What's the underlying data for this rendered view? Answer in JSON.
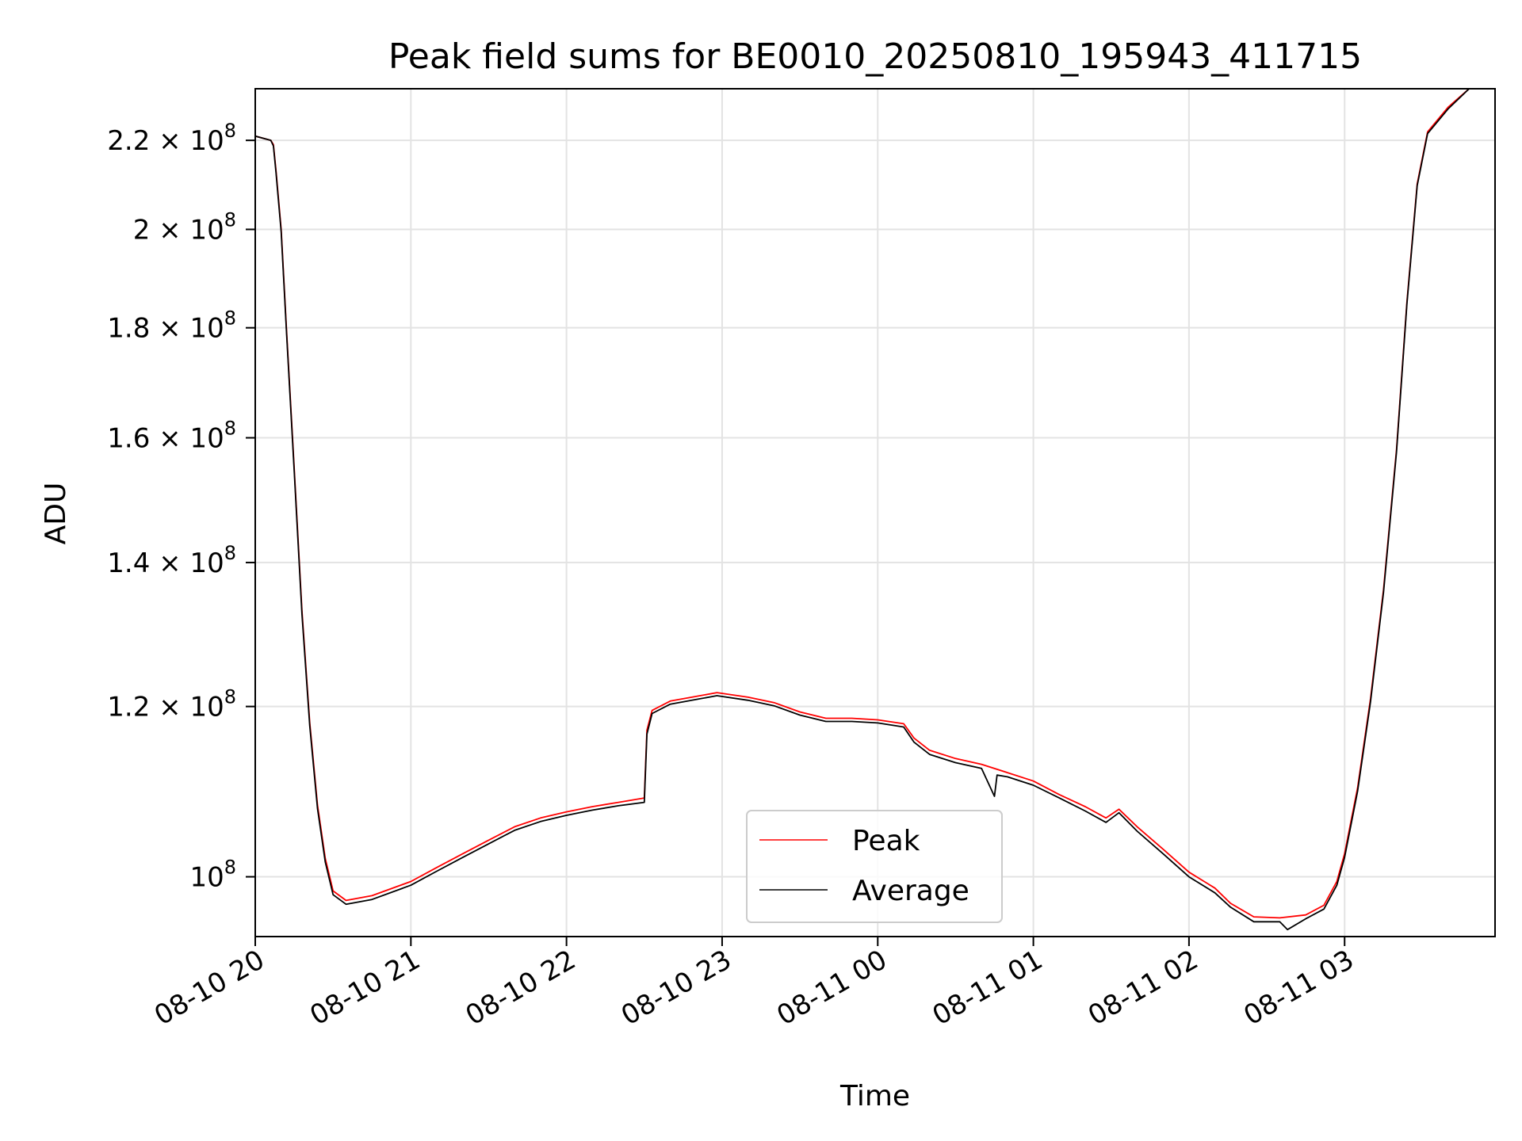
{
  "chart_data": {
    "type": "line",
    "title": "Peak field sums for BE0010_20250810_195943_411715",
    "xlabel": "Time",
    "ylabel": "ADU",
    "y_scale": "log",
    "grid": true,
    "legend_position": "lower center",
    "x_range": [
      "2025-08-10 20:00",
      "2025-08-11 03:58"
    ],
    "ylim": [
      93800000,
      232500000
    ],
    "x_ticks": [
      {
        "t": "2025-08-10 20:00",
        "label": "08-10 20"
      },
      {
        "t": "2025-08-10 21:00",
        "label": "08-10 21"
      },
      {
        "t": "2025-08-10 22:00",
        "label": "08-10 22"
      },
      {
        "t": "2025-08-10 23:00",
        "label": "08-10 23"
      },
      {
        "t": "2025-08-11 00:00",
        "label": "08-11 00"
      },
      {
        "t": "2025-08-11 01:00",
        "label": "08-11 01"
      },
      {
        "t": "2025-08-11 02:00",
        "label": "08-11 02"
      },
      {
        "t": "2025-08-11 03:00",
        "label": "08-11 03"
      }
    ],
    "y_ticks": [
      {
        "value": 100000000,
        "mant": "10",
        "exp": "8"
      },
      {
        "value": 120000000,
        "mant": "1.2 × 10",
        "exp": "8"
      },
      {
        "value": 140000000,
        "mant": "1.4 × 10",
        "exp": "8"
      },
      {
        "value": 160000000,
        "mant": "1.6 × 10",
        "exp": "8"
      },
      {
        "value": 180000000,
        "mant": "1.8 × 10",
        "exp": "8"
      },
      {
        "value": 200000000,
        "mant": "2 × 10",
        "exp": "8"
      },
      {
        "value": 220000000,
        "mant": "2.2 × 10",
        "exp": "8"
      }
    ],
    "series": [
      {
        "name": "Peak",
        "color": "#ff0000",
        "points": [
          [
            "2025-08-10 20:00",
            221000000
          ],
          [
            "2025-08-10 20:06",
            220000000
          ],
          [
            "2025-08-10 20:07",
            219000000
          ],
          [
            "2025-08-10 20:08",
            213000000
          ],
          [
            "2025-08-10 20:10",
            200000000
          ],
          [
            "2025-08-10 20:12",
            180000000
          ],
          [
            "2025-08-10 20:15",
            155000000
          ],
          [
            "2025-08-10 20:18",
            133000000
          ],
          [
            "2025-08-10 20:21",
            118000000
          ],
          [
            "2025-08-10 20:24",
            108000000
          ],
          [
            "2025-08-10 20:27",
            102000000
          ],
          [
            "2025-08-10 20:30",
            98500000
          ],
          [
            "2025-08-10 20:35",
            97500000
          ],
          [
            "2025-08-10 20:45",
            98000000
          ],
          [
            "2025-08-10 21:00",
            99500000
          ],
          [
            "2025-08-10 21:10",
            101000000
          ],
          [
            "2025-08-10 21:20",
            102500000
          ],
          [
            "2025-08-10 21:30",
            104000000
          ],
          [
            "2025-08-10 21:40",
            105500000
          ],
          [
            "2025-08-10 21:50",
            106500000
          ],
          [
            "2025-08-10 22:00",
            107200000
          ],
          [
            "2025-08-10 22:10",
            107800000
          ],
          [
            "2025-08-10 22:20",
            108300000
          ],
          [
            "2025-08-10 22:30",
            108800000
          ],
          [
            "2025-08-10 22:31",
            117000000
          ],
          [
            "2025-08-10 22:33",
            119500000
          ],
          [
            "2025-08-10 22:40",
            120700000
          ],
          [
            "2025-08-10 22:50",
            121300000
          ],
          [
            "2025-08-10 22:58",
            121800000
          ],
          [
            "2025-08-10 23:10",
            121200000
          ],
          [
            "2025-08-10 23:20",
            120500000
          ],
          [
            "2025-08-10 23:30",
            119300000
          ],
          [
            "2025-08-10 23:40",
            118500000
          ],
          [
            "2025-08-10 23:50",
            118500000
          ],
          [
            "2025-08-11 00:00",
            118300000
          ],
          [
            "2025-08-11 00:10",
            117800000
          ],
          [
            "2025-08-11 00:14",
            116000000
          ],
          [
            "2025-08-11 00:20",
            114500000
          ],
          [
            "2025-08-11 00:30",
            113500000
          ],
          [
            "2025-08-11 00:40",
            112800000
          ],
          [
            "2025-08-11 00:50",
            111800000
          ],
          [
            "2025-08-11 01:00",
            110800000
          ],
          [
            "2025-08-11 01:10",
            109200000
          ],
          [
            "2025-08-11 01:20",
            107800000
          ],
          [
            "2025-08-11 01:28",
            106500000
          ],
          [
            "2025-08-11 01:33",
            107500000
          ],
          [
            "2025-08-11 01:40",
            105500000
          ],
          [
            "2025-08-11 01:50",
            103000000
          ],
          [
            "2025-08-11 02:00",
            100500000
          ],
          [
            "2025-08-11 02:10",
            98800000
          ],
          [
            "2025-08-11 02:16",
            97200000
          ],
          [
            "2025-08-11 02:25",
            95800000
          ],
          [
            "2025-08-11 02:35",
            95700000
          ],
          [
            "2025-08-11 02:45",
            96000000
          ],
          [
            "2025-08-11 02:52",
            97000000
          ],
          [
            "2025-08-11 02:57",
            99500000
          ],
          [
            "2025-08-11 03:00",
            102500000
          ],
          [
            "2025-08-11 03:05",
            110000000
          ],
          [
            "2025-08-11 03:10",
            121000000
          ],
          [
            "2025-08-11 03:15",
            136000000
          ],
          [
            "2025-08-11 03:20",
            158000000
          ],
          [
            "2025-08-11 03:24",
            185000000
          ],
          [
            "2025-08-11 03:28",
            210000000
          ],
          [
            "2025-08-11 03:32",
            222000000
          ],
          [
            "2025-08-11 03:40",
            228000000
          ],
          [
            "2025-08-11 03:48",
            232500000
          ]
        ]
      },
      {
        "name": "Average",
        "color": "#000000",
        "points": [
          [
            "2025-08-10 20:00",
            221000000
          ],
          [
            "2025-08-10 20:06",
            220000000
          ],
          [
            "2025-08-10 20:07",
            218700000
          ],
          [
            "2025-08-10 20:08",
            212500000
          ],
          [
            "2025-08-10 20:10",
            199500000
          ],
          [
            "2025-08-10 20:12",
            179500000
          ],
          [
            "2025-08-10 20:15",
            154500000
          ],
          [
            "2025-08-10 20:18",
            132500000
          ],
          [
            "2025-08-10 20:21",
            117600000
          ],
          [
            "2025-08-10 20:24",
            107600000
          ],
          [
            "2025-08-10 20:27",
            101600000
          ],
          [
            "2025-08-10 20:30",
            98100000
          ],
          [
            "2025-08-10 20:35",
            97100000
          ],
          [
            "2025-08-10 20:45",
            97600000
          ],
          [
            "2025-08-10 21:00",
            99100000
          ],
          [
            "2025-08-10 21:10",
            100600000
          ],
          [
            "2025-08-10 21:20",
            102100000
          ],
          [
            "2025-08-10 21:30",
            103600000
          ],
          [
            "2025-08-10 21:40",
            105100000
          ],
          [
            "2025-08-10 21:50",
            106100000
          ],
          [
            "2025-08-10 22:00",
            106800000
          ],
          [
            "2025-08-10 22:10",
            107400000
          ],
          [
            "2025-08-10 22:20",
            107900000
          ],
          [
            "2025-08-10 22:30",
            108300000
          ],
          [
            "2025-08-10 22:31",
            116500000
          ],
          [
            "2025-08-10 22:33",
            119100000
          ],
          [
            "2025-08-10 22:40",
            120300000
          ],
          [
            "2025-08-10 22:50",
            120900000
          ],
          [
            "2025-08-10 22:58",
            121400000
          ],
          [
            "2025-08-10 23:10",
            120800000
          ],
          [
            "2025-08-10 23:20",
            120100000
          ],
          [
            "2025-08-10 23:30",
            118900000
          ],
          [
            "2025-08-10 23:40",
            118100000
          ],
          [
            "2025-08-10 23:50",
            118100000
          ],
          [
            "2025-08-11 00:00",
            117900000
          ],
          [
            "2025-08-11 00:10",
            117400000
          ],
          [
            "2025-08-11 00:14",
            115500000
          ],
          [
            "2025-08-11 00:20",
            114000000
          ],
          [
            "2025-08-11 00:30",
            113000000
          ],
          [
            "2025-08-11 00:40",
            112300000
          ],
          [
            "2025-08-11 00:45",
            109000000
          ],
          [
            "2025-08-11 00:46",
            111500000
          ],
          [
            "2025-08-11 00:50",
            111300000
          ],
          [
            "2025-08-11 01:00",
            110300000
          ],
          [
            "2025-08-11 01:10",
            108800000
          ],
          [
            "2025-08-11 01:20",
            107300000
          ],
          [
            "2025-08-11 01:28",
            106000000
          ],
          [
            "2025-08-11 01:33",
            107100000
          ],
          [
            "2025-08-11 01:40",
            105000000
          ],
          [
            "2025-08-11 01:50",
            102500000
          ],
          [
            "2025-08-11 02:00",
            100000000
          ],
          [
            "2025-08-11 02:10",
            98300000
          ],
          [
            "2025-08-11 02:16",
            96800000
          ],
          [
            "2025-08-11 02:25",
            95300000
          ],
          [
            "2025-08-11 02:35",
            95300000
          ],
          [
            "2025-08-11 02:38",
            94500000
          ],
          [
            "2025-08-11 02:45",
            95600000
          ],
          [
            "2025-08-11 02:52",
            96600000
          ],
          [
            "2025-08-11 02:57",
            99100000
          ],
          [
            "2025-08-11 03:00",
            102100000
          ],
          [
            "2025-08-11 03:05",
            109600000
          ],
          [
            "2025-08-11 03:10",
            120600000
          ],
          [
            "2025-08-11 03:15",
            135600000
          ],
          [
            "2025-08-11 03:20",
            157600000
          ],
          [
            "2025-08-11 03:24",
            184600000
          ],
          [
            "2025-08-11 03:28",
            209600000
          ],
          [
            "2025-08-11 03:32",
            221600000
          ],
          [
            "2025-08-11 03:40",
            227600000
          ],
          [
            "2025-08-11 03:48",
            232500000
          ]
        ]
      }
    ]
  }
}
